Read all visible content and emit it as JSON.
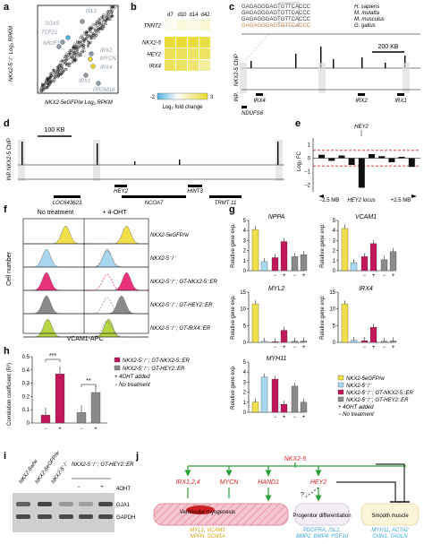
{
  "panels": {
    "a": {
      "label": "a",
      "ylabel": "NKX2-5⁻/⁻ Log₂ RPKM",
      "xlabel": "NKX2-5eGFP/w Log₂ RPKM",
      "genes_up": [
        "ISL1",
        "SOX9",
        "TCF21",
        "NR2F1"
      ],
      "genes_down": [
        "IRX2",
        "MYCN",
        "IRX4",
        "IRX1",
        "PRDM16"
      ]
    },
    "b": {
      "label": "b",
      "columns": [
        "d7",
        "d10",
        "d14",
        "d42"
      ],
      "rows": [
        "TNNT2",
        "NKX2-5",
        "HEY2",
        "IRX4"
      ],
      "scale_min": "-2",
      "scale_max": "3",
      "scale_title": "Log₂ fold change"
    },
    "c": {
      "label": "c",
      "seqs": [
        {
          "text": "GAGAGGGAGTGTTCACCC",
          "species": "H. sapiens"
        },
        {
          "text": "GAGAGGGAGTGTTCACCC",
          "species": "M. mulatta"
        },
        {
          "text": "GAGAGGGAGTGTTCACCC",
          "species": "M. musculus"
        },
        {
          "text": "GAGAGGGAGTGTTCACCC",
          "species": "G. gallus"
        }
      ],
      "scale": "200 KB",
      "track_top": "NKX2-5 ChIP",
      "track_bottom": "INP.",
      "genes": [
        "IRX4",
        "NDUFS6",
        "IRX2",
        "IRX1"
      ]
    },
    "d": {
      "label": "d",
      "scale": "100 KB",
      "track_top": "NKX2-5 ChIP",
      "track_bottom": "INP.",
      "genes": [
        "HEY2",
        "HINT3",
        "LOC643623",
        "NCOA7",
        "TRMT 11"
      ]
    },
    "e": {
      "label": "e",
      "annotation": "HEY2",
      "ylabel": "Log₂ FC",
      "xlabels": [
        "−2.5 MB",
        "HEY2 locus",
        "+2.5 MB"
      ],
      "yticks": [
        "1",
        "0",
        "−1",
        "−2"
      ]
    },
    "f": {
      "label": "f",
      "col_titles": [
        "No treatment",
        "+ 4-OHT"
      ],
      "row_labels": [
        "NKX2-5eGFP/w",
        "NKX2-5⁻/⁻",
        "NKX2-5⁻/⁻; GT-NKX2-5::ER",
        "NKX2-5⁻/⁻; GT-HEY2::ER",
        "NKX2-5⁻/⁻; GT-IRX4::ER"
      ],
      "ylabel": "Cell number",
      "xlabel": "VCAM1-APC"
    },
    "g": {
      "label": "g",
      "ylabel": "Relative gene exp.",
      "charts": [
        "NPPA",
        "VCAM1",
        "MYL2",
        "IRX4",
        "MYH11"
      ],
      "legend": [
        {
          "text": "NKX2-5eGFP/w",
          "color": "#f2e04a"
        },
        {
          "text": "NKX2-5⁻/⁻",
          "color": "#a8d8f0"
        },
        {
          "text": "NKX2-5⁻/⁻; GT-NKX2-5::ER",
          "color": "#c2185b"
        },
        {
          "text": "NKX2-5⁻/⁻; GT-HEY2::ER",
          "color": "#8a8a8a"
        },
        {
          "text": "+ 4OHT added",
          "color": ""
        },
        {
          "text": "− No treatment",
          "color": ""
        }
      ]
    },
    "h": {
      "label": "h",
      "ylabel": "Correlation coefficient (R²)",
      "yticks": [
        "0.5",
        "0.4",
        "0.3",
        "0.2",
        "0.1",
        "0"
      ],
      "legend": [
        {
          "text": "NKX2-5⁻/⁻; GT-NKX2-5::ER",
          "color": "#c2185b"
        },
        {
          "text": "NKX2-5⁻/⁻; GT-HEY2::ER",
          "color": "#8a8a8a"
        },
        {
          "text": "+ 4OHT added",
          "color": ""
        },
        {
          "text": "− No treatment",
          "color": ""
        }
      ],
      "sig": [
        "***",
        "**"
      ],
      "xticks": [
        "−",
        "+",
        "−",
        "+"
      ]
    },
    "i": {
      "label": "i",
      "lanes": [
        "NKX2-5w/w",
        "NKX2-5eGFP/w",
        "NKX2-5⁻/⁻"
      ],
      "group": "NKX2-5⁻/⁻; GT-HEY2::ER",
      "treatment": "4OHT",
      "treat_signs": [
        "−",
        "+"
      ],
      "bands": [
        "GJA1",
        "GAPDH"
      ]
    },
    "j": {
      "label": "j",
      "top": "NKX2-5",
      "nodes": [
        "IRX1,2,4",
        "MYCN",
        "HAND1",
        "HEY2"
      ],
      "boxes": [
        {
          "title": "Ventricular myogenesis",
          "genes1": "MYL2, VCAM1",
          "genes2": "NPPA, SCN5A"
        },
        {
          "title": "Progenitor differentiation",
          "genes1": "PDGFRA, ISL1,",
          "genes2": "BMP2, BMP4, FGF10"
        },
        {
          "title": "Smooth muscle",
          "genes1": "MYH11, ACTA2",
          "genes2": "CNN1, TAGLN"
        }
      ],
      "question": "?"
    }
  },
  "chart_data": [
    {
      "type": "scatter",
      "panel": "a",
      "xlabel": "NKX2-5eGFP/w Log₂ RPKM",
      "ylabel": "NKX2-5⁻/⁻ Log₂ RPKM",
      "highlighted": [
        {
          "gene": "ISL1",
          "group": "up"
        },
        {
          "gene": "SOX9",
          "group": "up"
        },
        {
          "gene": "TCF21",
          "group": "up"
        },
        {
          "gene": "NR2F1",
          "group": "up"
        },
        {
          "gene": "IRX2",
          "group": "down"
        },
        {
          "gene": "MYCN",
          "group": "down"
        },
        {
          "gene": "IRX4",
          "group": "down"
        },
        {
          "gene": "IRX1",
          "group": "down"
        },
        {
          "gene": "PRDM16",
          "group": "down"
        }
      ]
    },
    {
      "type": "heatmap",
      "panel": "b",
      "x": [
        "d7",
        "d10",
        "d14",
        "d42"
      ],
      "y": [
        "TNNT2",
        "NKX2-5",
        "HEY2",
        "IRX4"
      ],
      "values": [
        [
          0.2,
          0.5,
          0.4,
          0.6
        ],
        [
          2.8,
          2.8,
          2.7,
          2.6
        ],
        [
          2.4,
          2.3,
          2.2,
          2.2
        ],
        [
          2.3,
          2.2,
          2.0,
          1.4
        ]
      ],
      "zlim": [
        -2,
        3
      ],
      "colorbar_label": "Log₂ fold change"
    },
    {
      "type": "bar",
      "panel": "e",
      "ylabel": "Log₂ FC",
      "ylim": [
        -2.5,
        1.5
      ],
      "values": [
        0.25,
        -0.2,
        0.2,
        -0.5,
        -2.2,
        0.3,
        0.15,
        -0.3,
        0.1,
        -0.65
      ]
    },
    {
      "type": "bar",
      "panel": "g",
      "title": "NPPA",
      "ylabel": "Relative gene exp.",
      "categories": [
        "eGFP/w",
        "−/−",
        "NKX2-5::ER −",
        "NKX2-5::ER +",
        "HEY2::ER −",
        "HEY2::ER +"
      ],
      "values": [
        4.1,
        0.9,
        1.3,
        2.9,
        1.4,
        1.6
      ],
      "ylim": [
        0,
        5
      ],
      "yticks": [
        0,
        1,
        2,
        3,
        4,
        5
      ]
    },
    {
      "type": "bar",
      "panel": "g",
      "title": "VCAM1",
      "ylabel": "Relative gene exp.",
      "categories": [
        "eGFP/w",
        "−/−",
        "NKX2-5::ER −",
        "NKX2-5::ER +",
        "HEY2::ER −",
        "HEY2::ER +"
      ],
      "values": [
        4.2,
        0.8,
        1.4,
        2.7,
        1.1,
        1.9
      ],
      "ylim": [
        0,
        5
      ],
      "yticks": [
        0,
        1,
        2,
        3,
        4,
        5
      ]
    },
    {
      "type": "bar",
      "panel": "g",
      "title": "MYL2",
      "ylabel": "Relative gene exp.",
      "categories": [
        "eGFP/w",
        "−/−",
        "NKX2-5::ER −",
        "NKX2-5::ER +",
        "HEY2::ER −",
        "HEY2::ER +"
      ],
      "values": [
        11.5,
        0.3,
        0.2,
        3.6,
        0.3,
        0.4
      ],
      "ylim": [
        0,
        15
      ],
      "yticks": [
        0,
        5,
        10,
        15
      ]
    },
    {
      "type": "bar",
      "panel": "g",
      "title": "IRX4",
      "ylabel": "Relative gene exp.",
      "categories": [
        "eGFP/w",
        "−/−",
        "NKX2-5::ER −",
        "NKX2-5::ER +",
        "HEY2::ER −",
        "HEY2::ER +"
      ],
      "values": [
        11.5,
        0.6,
        0.5,
        4.5,
        0.3,
        0.4
      ],
      "ylim": [
        0,
        15
      ],
      "yticks": [
        0,
        5,
        10,
        15
      ]
    },
    {
      "type": "bar",
      "panel": "g",
      "title": "MYH11",
      "ylabel": "Relative gene exp.",
      "categories": [
        "eGFP/w",
        "−/−",
        "NKX2-5::ER −",
        "NKX2-5::ER +",
        "HEY2::ER −",
        "HEY2::ER +"
      ],
      "values": [
        1.0,
        3.5,
        3.3,
        0.8,
        2.6,
        1.0
      ],
      "ylim": [
        0,
        5
      ],
      "yticks": [
        0,
        1,
        2,
        3,
        4,
        5
      ]
    },
    {
      "type": "bar",
      "panel": "h",
      "ylabel": "Correlation coefficient (R²)",
      "categories": [
        "NKX2-5::ER −",
        "NKX2-5::ER +",
        "HEY2::ER −",
        "HEY2::ER +"
      ],
      "values": [
        0.06,
        0.37,
        0.08,
        0.23
      ],
      "ylim": [
        0,
        0.5
      ]
    }
  ]
}
